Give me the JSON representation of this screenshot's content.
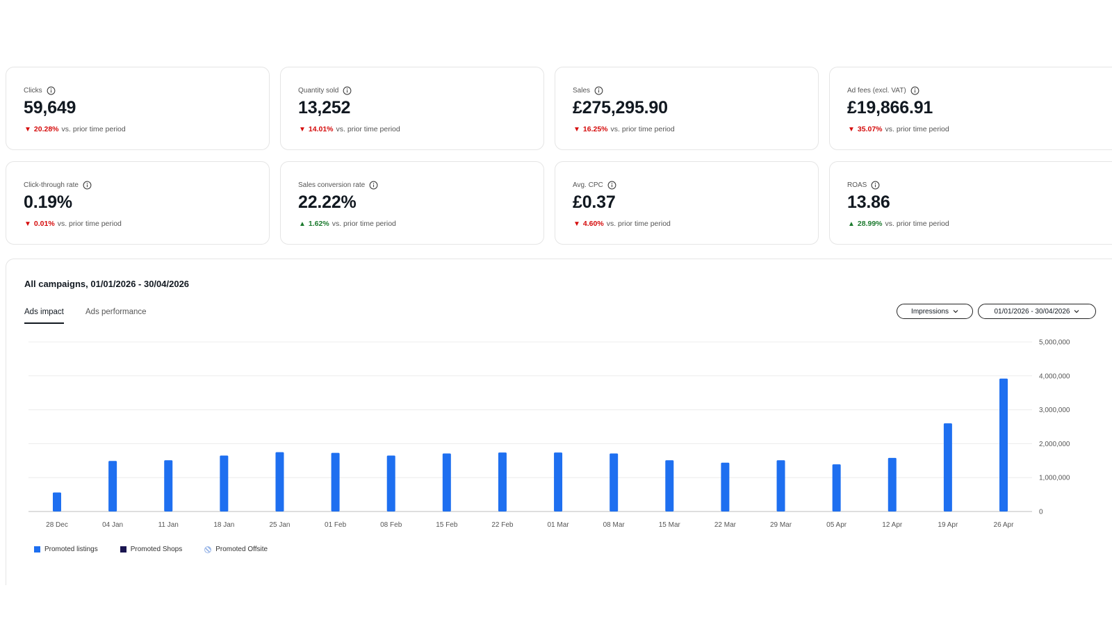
{
  "kpis": [
    {
      "label": "Clicks",
      "value": "59,649",
      "direction": "down",
      "arrow": "▼",
      "change": "20.28%",
      "suffix": "vs. prior time period"
    },
    {
      "label": "Quantity sold",
      "value": "13,252",
      "direction": "down",
      "arrow": "▼",
      "change": "14.01%",
      "suffix": "vs. prior time period"
    },
    {
      "label": "Sales",
      "value": "£275,295.90",
      "direction": "down",
      "arrow": "▼",
      "change": "16.25%",
      "suffix": "vs. prior time period"
    },
    {
      "label": "Ad fees (excl. VAT)",
      "value": "£19,866.91",
      "direction": "down",
      "arrow": "▼",
      "change": "35.07%",
      "suffix": "vs. prior time period"
    },
    {
      "label": "Click-through rate",
      "value": "0.19%",
      "direction": "down",
      "arrow": "▼",
      "change": "0.01%",
      "suffix": "vs. prior time period"
    },
    {
      "label": "Sales conversion rate",
      "value": "22.22%",
      "direction": "up",
      "arrow": "▲",
      "change": "1.62%",
      "suffix": "vs. prior time period"
    },
    {
      "label": "Avg. CPC",
      "value": "£0.37",
      "direction": "down",
      "arrow": "▼",
      "change": "4.60%",
      "suffix": "vs. prior time period"
    },
    {
      "label": "ROAS",
      "value": "13.86",
      "direction": "up",
      "arrow": "▲",
      "change": "28.99%",
      "suffix": "vs. prior time period"
    }
  ],
  "panel": {
    "title": "All campaigns, 01/01/2026 - 30/04/2026",
    "tabs": [
      "Ads impact",
      "Ads performance"
    ],
    "active_tab": "Ads impact",
    "metric_dropdown": "Impressions",
    "date_dropdown": "01/01/2026 - 30/04/2026"
  },
  "colors": {
    "bar": "#1e6ff0",
    "promoted_shops": "#1a1550",
    "down": "#d50b0b",
    "up": "#1c7a2e"
  },
  "legend": [
    {
      "label": "Promoted listings",
      "color": "#1e6ff0",
      "pattern": "solid"
    },
    {
      "label": "Promoted Shops",
      "color": "#1a1550",
      "pattern": "solid"
    },
    {
      "label": "Promoted Offsite",
      "color": "#9bb7e8",
      "pattern": "striped"
    }
  ],
  "chart_data": {
    "type": "bar",
    "categories": [
      "28 Dec",
      "04 Jan",
      "11 Jan",
      "18 Jan",
      "25 Jan",
      "01 Feb",
      "08 Feb",
      "15 Feb",
      "22 Feb",
      "01 Mar",
      "08 Mar",
      "15 Mar",
      "22 Mar",
      "29 Mar",
      "05 Apr",
      "12 Apr",
      "19 Apr",
      "26 Apr"
    ],
    "series": [
      {
        "name": "Promoted listings",
        "values": [
          560000,
          1490000,
          1510000,
          1650000,
          1750000,
          1730000,
          1650000,
          1710000,
          1740000,
          1740000,
          1710000,
          1510000,
          1440000,
          1510000,
          1390000,
          1580000,
          2600000,
          3920000
        ]
      }
    ],
    "ylim": [
      0,
      5000000
    ],
    "yticks": [
      "0",
      "1,000,000",
      "2,000,000",
      "3,000,000",
      "4,000,000",
      "5,000,000"
    ],
    "ytick_values": [
      0,
      1000000,
      2000000,
      3000000,
      4000000,
      5000000
    ],
    "grid": true,
    "legend_position": "bottom-left"
  }
}
